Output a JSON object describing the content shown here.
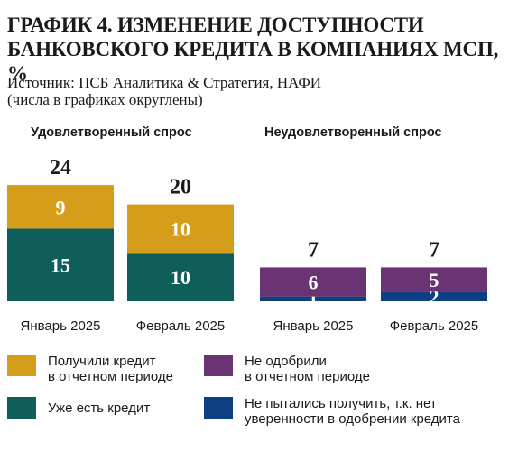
{
  "title_line1": "ГРАФИК 4. ИЗМЕНЕНИЕ ДОСТУПНОСТИ",
  "title_line2": "БАНКОВСКОГО КРЕДИТА В КОМПАНИЯХ МСП, %",
  "source": "Источник: ПСБ Аналитика & Стратегия, НАФИ",
  "note": "(числа в графиках округлены)",
  "colors": {
    "got_credit": "#d49e1b",
    "has_credit": "#0e5e5a",
    "not_approved": "#6a3373",
    "did_not_try": "#0f3f83"
  },
  "chart_data": [
    {
      "type": "bar",
      "stacked": true,
      "title": "Удовлетворенный спрос",
      "categories": [
        "Январь 2025",
        "Февраль 2025"
      ],
      "series": [
        {
          "name": "Уже есть кредит",
          "color_key": "has_credit",
          "values": [
            15,
            10
          ]
        },
        {
          "name": "Получили кредит в отчетном периоде",
          "color_key": "got_credit",
          "values": [
            9,
            10
          ]
        }
      ],
      "totals": [
        24,
        20
      ]
    },
    {
      "type": "bar",
      "stacked": true,
      "title": "Неудовлетворенный спрос",
      "categories": [
        "Январь 2025",
        "Февраль 2025"
      ],
      "series": [
        {
          "name": "Не пытались получить, т.к. нет уверенности в одобрении кредита",
          "color_key": "did_not_try",
          "values": [
            1,
            2
          ]
        },
        {
          "name": "Не одобрили в отчетном периоде",
          "color_key": "not_approved",
          "values": [
            6,
            5
          ]
        }
      ],
      "totals": [
        7,
        7
      ]
    }
  ],
  "legend": [
    {
      "label": "Получили кредит\nв отчетном периоде",
      "color_key": "got_credit"
    },
    {
      "label": "Не одобрили\nв отчетном периоде",
      "color_key": "not_approved"
    },
    {
      "label": "Уже есть кредит",
      "color_key": "has_credit"
    },
    {
      "label": "Не пытались получить, т.к. нет\nуверенности в одобрении кредита",
      "color_key": "did_not_try"
    }
  ]
}
